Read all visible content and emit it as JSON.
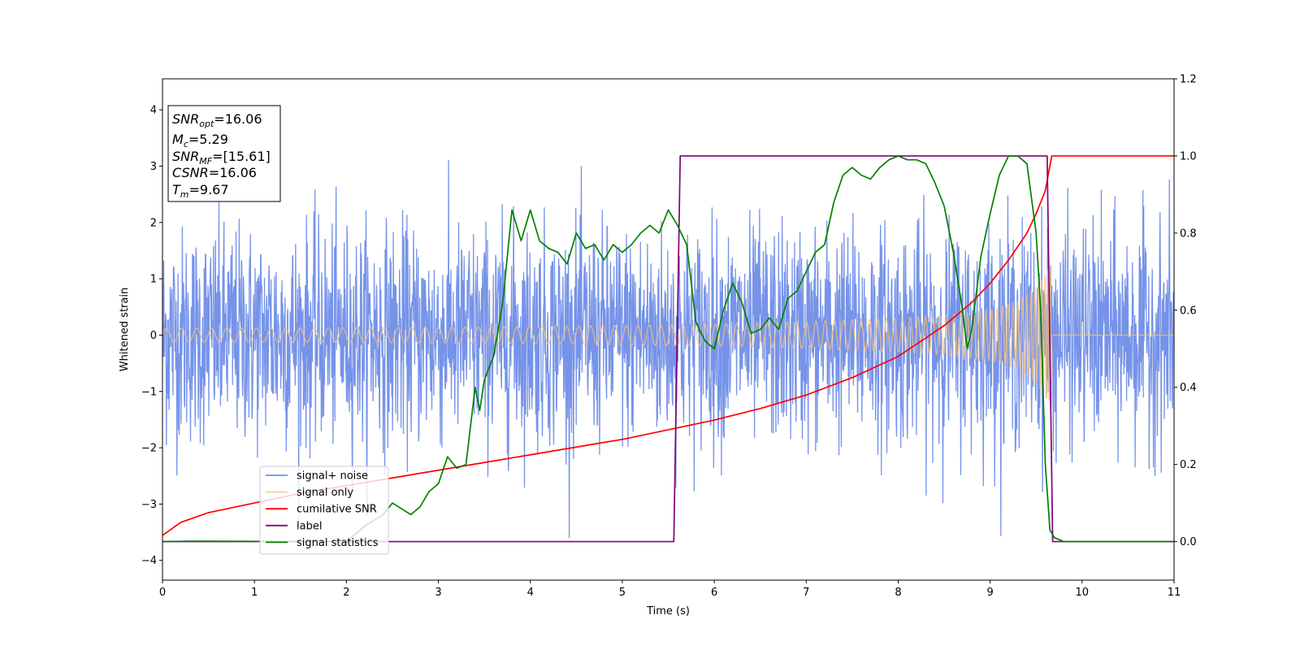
{
  "chart_data": {
    "type": "line",
    "xlabel": "Time (s)",
    "ylabel": "Whitened strain",
    "xlim": [
      0,
      11
    ],
    "ylim_left": [
      -4.35,
      4.55
    ],
    "ylim_right": [
      -0.1,
      1.2
    ],
    "x_ticks": [
      0,
      1,
      2,
      3,
      4,
      5,
      6,
      7,
      8,
      9,
      10,
      11
    ],
    "y_ticks_left": [
      -4,
      -3,
      -2,
      -1,
      0,
      1,
      2,
      3,
      4
    ],
    "y_ticks_right": [
      "0.0",
      "0.2",
      "0.4",
      "0.6",
      "0.8",
      "1.0",
      "1.2"
    ],
    "grid": false,
    "legend_position": "lower-left",
    "annotation": [
      {
        "base": "SNR",
        "sub": "opt",
        "value": "=16.06"
      },
      {
        "base": "M",
        "sub": "c",
        "value": "=5.29"
      },
      {
        "base": "SNR",
        "sub": "MF",
        "value": "=[15.61]"
      },
      {
        "base": "CSNR",
        "sub": "",
        "value": "=16.06"
      },
      {
        "base": "T",
        "sub": "m",
        "value": "=9.67"
      }
    ],
    "series": [
      {
        "name": "signal+ noise",
        "axis": "left",
        "color": "#4169e1",
        "kind": "noise-band",
        "x_range": [
          0,
          11
        ],
        "typical_amplitude": 1.6,
        "max_amplitude": 3.6
      },
      {
        "name": "signal only",
        "axis": "left",
        "color": "#f5c07a",
        "kind": "chirp",
        "x_range": [
          0,
          9.67
        ],
        "envelope": {
          "x": [
            0,
            2,
            4,
            6,
            7,
            8,
            8.5,
            9,
            9.3,
            9.5,
            9.6,
            9.67
          ],
          "y": [
            0.12,
            0.13,
            0.15,
            0.2,
            0.24,
            0.3,
            0.35,
            0.45,
            0.6,
            0.85,
            1.1,
            1.3
          ]
        }
      },
      {
        "name": "cumilative SNR",
        "axis": "right",
        "color": "#ff0000",
        "x": [
          0,
          0.2,
          0.5,
          1,
          1.5,
          2,
          2.5,
          3,
          3.5,
          4,
          4.5,
          5,
          5.5,
          6,
          6.5,
          7,
          7.5,
          8,
          8.5,
          8.8,
          9,
          9.2,
          9.4,
          9.5,
          9.6,
          9.67,
          11
        ],
        "y": [
          0.016,
          0.05,
          0.075,
          0.1,
          0.125,
          0.145,
          0.165,
          0.185,
          0.205,
          0.225,
          0.245,
          0.265,
          0.29,
          0.315,
          0.345,
          0.38,
          0.425,
          0.48,
          0.56,
          0.62,
          0.67,
          0.73,
          0.8,
          0.85,
          0.91,
          1.0,
          1.0
        ]
      },
      {
        "name": "label",
        "axis": "right",
        "color": "#800080",
        "x": [
          0,
          5.56,
          5.63,
          9.62,
          9.68,
          11
        ],
        "y": [
          0,
          0,
          1,
          1,
          0,
          0
        ]
      },
      {
        "name": "signal statistics",
        "axis": "right",
        "color": "#008000",
        "x": [
          0,
          0.3,
          2.0,
          2.2,
          2.4,
          2.5,
          2.7,
          2.8,
          2.9,
          3.0,
          3.1,
          3.2,
          3.3,
          3.4,
          3.45,
          3.5,
          3.6,
          3.7,
          3.8,
          3.9,
          4.0,
          4.1,
          4.2,
          4.3,
          4.4,
          4.5,
          4.6,
          4.7,
          4.8,
          4.9,
          5.0,
          5.1,
          5.2,
          5.3,
          5.4,
          5.5,
          5.6,
          5.7,
          5.8,
          5.9,
          6.0,
          6.1,
          6.2,
          6.3,
          6.4,
          6.5,
          6.6,
          6.7,
          6.8,
          6.9,
          7.0,
          7.1,
          7.2,
          7.3,
          7.4,
          7.5,
          7.6,
          7.7,
          7.8,
          7.9,
          8.0,
          8.1,
          8.2,
          8.3,
          8.4,
          8.5,
          8.6,
          8.7,
          8.75,
          8.8,
          8.9,
          9.0,
          9.1,
          9.2,
          9.3,
          9.4,
          9.5,
          9.55,
          9.6,
          9.65,
          9.7,
          9.8,
          10,
          11
        ],
        "y": [
          0.0,
          0.001,
          0.0,
          0.04,
          0.07,
          0.1,
          0.07,
          0.09,
          0.13,
          0.15,
          0.22,
          0.19,
          0.2,
          0.4,
          0.34,
          0.42,
          0.48,
          0.62,
          0.86,
          0.78,
          0.86,
          0.78,
          0.76,
          0.75,
          0.72,
          0.8,
          0.76,
          0.77,
          0.73,
          0.77,
          0.75,
          0.77,
          0.8,
          0.82,
          0.8,
          0.86,
          0.82,
          0.77,
          0.57,
          0.52,
          0.5,
          0.6,
          0.67,
          0.62,
          0.54,
          0.55,
          0.58,
          0.55,
          0.63,
          0.65,
          0.7,
          0.75,
          0.77,
          0.88,
          0.95,
          0.97,
          0.95,
          0.94,
          0.97,
          0.99,
          1.0,
          0.99,
          0.99,
          0.98,
          0.93,
          0.87,
          0.75,
          0.6,
          0.5,
          0.55,
          0.74,
          0.85,
          0.95,
          1.0,
          1.0,
          0.98,
          0.8,
          0.6,
          0.2,
          0.03,
          0.01,
          0.0,
          0.0,
          0.0
        ]
      }
    ]
  }
}
